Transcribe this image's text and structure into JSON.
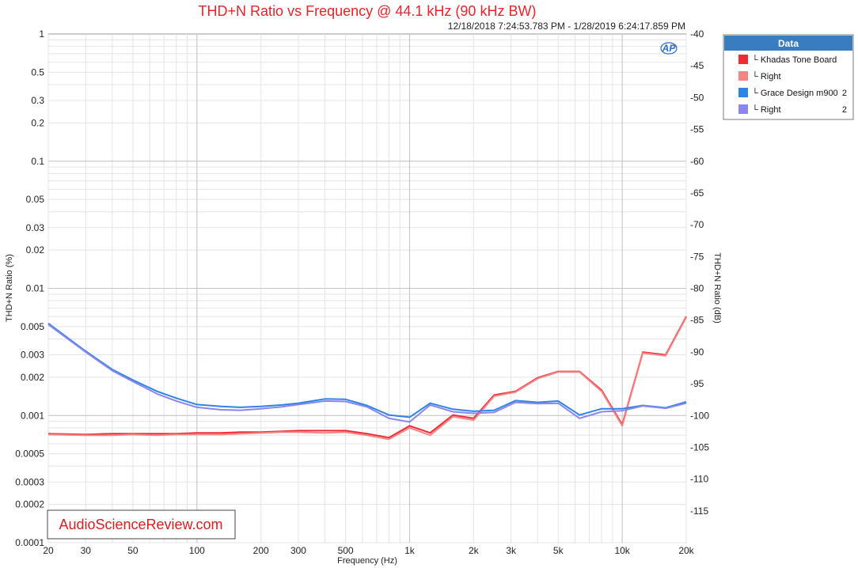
{
  "chart_data": {
    "type": "line",
    "title": "THD+N Ratio vs Frequency @ 44.1 kHz (90 kHz BW)",
    "subtitle": "12/18/2018 7:24:53.783 PM - 1/28/2019 6:24:17.859 PM",
    "xlabel": "Frequency (Hz)",
    "ylabel_left": "THD+N Ratio (%)",
    "ylabel_right": "THD+N Ratio (dB)",
    "x_scale": "log",
    "y_scale": "log",
    "xlim": [
      20,
      20000
    ],
    "ylim_left": [
      0.0001,
      1
    ],
    "ylim_right": [
      -120,
      -40
    ],
    "grid": true,
    "legend_title": "Data",
    "legend_position": "top-right outside",
    "x_ticks": [
      {
        "v": 20,
        "label": "20"
      },
      {
        "v": 30,
        "label": "30"
      },
      {
        "v": 50,
        "label": "50"
      },
      {
        "v": 100,
        "label": "100"
      },
      {
        "v": 200,
        "label": "200"
      },
      {
        "v": 300,
        "label": "300"
      },
      {
        "v": 500,
        "label": "500"
      },
      {
        "v": 1000,
        "label": "1k"
      },
      {
        "v": 2000,
        "label": "2k"
      },
      {
        "v": 3000,
        "label": "3k"
      },
      {
        "v": 5000,
        "label": "5k"
      },
      {
        "v": 10000,
        "label": "10k"
      },
      {
        "v": 20000,
        "label": "20k"
      }
    ],
    "y_ticks_left": [
      {
        "v": 1,
        "label": "1"
      },
      {
        "v": 0.5,
        "label": "0.5"
      },
      {
        "v": 0.3,
        "label": "0.3"
      },
      {
        "v": 0.2,
        "label": "0.2"
      },
      {
        "v": 0.1,
        "label": "0.1"
      },
      {
        "v": 0.05,
        "label": "0.05"
      },
      {
        "v": 0.03,
        "label": "0.03"
      },
      {
        "v": 0.02,
        "label": "0.02"
      },
      {
        "v": 0.01,
        "label": "0.01"
      },
      {
        "v": 0.005,
        "label": "0.005"
      },
      {
        "v": 0.003,
        "label": "0.003"
      },
      {
        "v": 0.002,
        "label": "0.002"
      },
      {
        "v": 0.001,
        "label": "0.001"
      },
      {
        "v": 0.0005,
        "label": "0.0005"
      },
      {
        "v": 0.0003,
        "label": "0.0003"
      },
      {
        "v": 0.0002,
        "label": "0.0002"
      },
      {
        "v": 0.0001,
        "label": "0.0001"
      }
    ],
    "y_ticks_right": [
      {
        "v": -40,
        "label": "-40"
      },
      {
        "v": -45,
        "label": "-45"
      },
      {
        "v": -50,
        "label": "-50"
      },
      {
        "v": -55,
        "label": "-55"
      },
      {
        "v": -60,
        "label": "-60"
      },
      {
        "v": -65,
        "label": "-65"
      },
      {
        "v": -70,
        "label": "-70"
      },
      {
        "v": -75,
        "label": "-75"
      },
      {
        "v": -80,
        "label": "-80"
      },
      {
        "v": -85,
        "label": "-85"
      },
      {
        "v": -90,
        "label": "-90"
      },
      {
        "v": -95,
        "label": "-95"
      },
      {
        "v": -100,
        "label": "-100"
      },
      {
        "v": -105,
        "label": "-105"
      },
      {
        "v": -110,
        "label": "-110"
      },
      {
        "v": -115,
        "label": "-115"
      }
    ],
    "series": [
      {
        "name": "Khadas Tone Board",
        "legend_prefix": "└ ",
        "legend_suffix": "",
        "color": "#ee2b35",
        "x": [
          20,
          30,
          40,
          50,
          65,
          80,
          100,
          130,
          160,
          200,
          250,
          300,
          400,
          500,
          630,
          800,
          1000,
          1250,
          1600,
          2000,
          2500,
          3150,
          4000,
          5000,
          6300,
          8000,
          10000,
          12500,
          16000,
          20000
        ],
        "y": [
          0.00072,
          0.00071,
          0.00072,
          0.00072,
          0.00072,
          0.00072,
          0.00073,
          0.00073,
          0.00074,
          0.00074,
          0.00075,
          0.00076,
          0.00076,
          0.00076,
          0.00072,
          0.00067,
          0.00083,
          0.00073,
          0.00101,
          0.00095,
          0.00145,
          0.00155,
          0.00198,
          0.00222,
          0.00222,
          0.00158,
          0.00085,
          0.00315,
          0.003,
          0.006
        ]
      },
      {
        "name": "Right",
        "legend_prefix": "└ ",
        "legend_suffix": "",
        "color": "#f28686",
        "x": [
          20,
          30,
          40,
          50,
          65,
          80,
          100,
          130,
          160,
          200,
          250,
          300,
          400,
          500,
          630,
          800,
          1000,
          1250,
          1600,
          2000,
          2500,
          3150,
          4000,
          5000,
          6300,
          8000,
          10000,
          12500,
          16000,
          20000
        ],
        "y": [
          0.00071,
          0.0007,
          0.0007,
          0.00071,
          0.0007,
          0.00071,
          0.00071,
          0.00071,
          0.00072,
          0.00073,
          0.00074,
          0.00074,
          0.00073,
          0.00074,
          0.0007,
          0.00065,
          0.0008,
          0.0007,
          0.00098,
          0.00092,
          0.00142,
          0.00153,
          0.00195,
          0.0022,
          0.0022,
          0.00155,
          0.00083,
          0.0031,
          0.00295,
          0.0059
        ]
      },
      {
        "name": "Grace Design m900",
        "legend_prefix": "└ ",
        "legend_suffix": "2",
        "color": "#2e84e4",
        "x": [
          20,
          30,
          40,
          50,
          65,
          80,
          100,
          130,
          160,
          200,
          250,
          300,
          400,
          500,
          630,
          800,
          1000,
          1250,
          1600,
          2000,
          2500,
          3150,
          4000,
          5000,
          6300,
          8000,
          10000,
          12500,
          16000,
          20000
        ],
        "y": [
          0.0053,
          0.0032,
          0.0023,
          0.0019,
          0.00155,
          0.00137,
          0.00122,
          0.00118,
          0.00116,
          0.00118,
          0.00121,
          0.00125,
          0.00135,
          0.00134,
          0.0012,
          0.00101,
          0.00097,
          0.00125,
          0.00112,
          0.00108,
          0.0011,
          0.00131,
          0.00127,
          0.0013,
          0.00101,
          0.00113,
          0.00113,
          0.0012,
          0.00115,
          0.00128
        ]
      },
      {
        "name": "Right",
        "legend_prefix": "└ ",
        "legend_suffix": "2",
        "color": "#8a86ee",
        "x": [
          20,
          30,
          40,
          50,
          65,
          80,
          100,
          130,
          160,
          200,
          250,
          300,
          400,
          500,
          630,
          800,
          1000,
          1250,
          1600,
          2000,
          2500,
          3150,
          4000,
          5000,
          6300,
          8000,
          10000,
          12500,
          16000,
          20000
        ],
        "y": [
          0.0052,
          0.00315,
          0.00225,
          0.00185,
          0.00148,
          0.0013,
          0.00116,
          0.00111,
          0.0011,
          0.00113,
          0.00117,
          0.00122,
          0.0013,
          0.00129,
          0.00117,
          0.00095,
          0.00089,
          0.00121,
          0.00107,
          0.00104,
          0.00106,
          0.00127,
          0.00124,
          0.00125,
          0.00095,
          0.00107,
          0.00109,
          0.00119,
          0.00114,
          0.00125
        ]
      }
    ]
  },
  "watermark": "AudioScienceReview.com",
  "ap_logo_text": "AP"
}
